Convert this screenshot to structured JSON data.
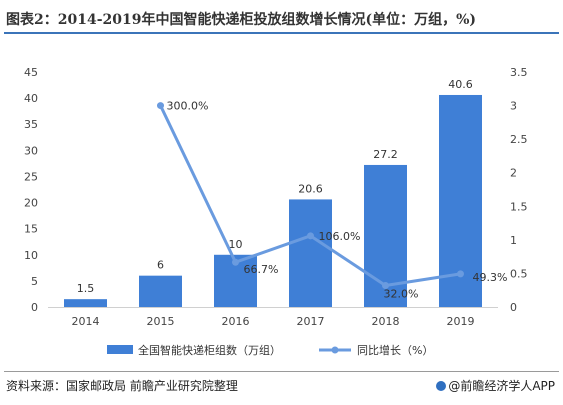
{
  "title": "图表2：2014-2019年中国智能快递柜投放组数增长情况(单位：万组，%)",
  "source": "资料来源：国家邮政局 前瞻产业研究院整理",
  "brand": "@前瞻经济学人APP",
  "colors": {
    "bar": "#3f7fd6",
    "line": "#6a9bdf",
    "title_rule": "#3b74b9"
  },
  "chart_data": {
    "type": "bar",
    "categories": [
      "2014",
      "2015",
      "2016",
      "2017",
      "2018",
      "2019"
    ],
    "series": [
      {
        "name": "全国智能快递柜组数（万组）",
        "type": "bar",
        "axis": "left",
        "values": [
          1.5,
          6,
          10,
          20.6,
          27.2,
          40.6
        ],
        "labels": [
          "1.5",
          "6",
          "10",
          "20.6",
          "27.2",
          "40.6"
        ]
      },
      {
        "name": "同比增长（%）",
        "type": "line",
        "axis": "right",
        "values": [
          null,
          3.0,
          0.667,
          1.06,
          0.32,
          0.493
        ],
        "labels": [
          "",
          "300.0%",
          "66.7%",
          "106.0%",
          "32.0%",
          "49.3%"
        ]
      }
    ],
    "left_axis": {
      "ylim": [
        0,
        45
      ],
      "ticks": [
        "0",
        "5",
        "10",
        "15",
        "20",
        "25",
        "30",
        "35",
        "40",
        "45"
      ]
    },
    "right_axis": {
      "ylim": [
        0,
        3.5
      ],
      "ticks": [
        "0",
        "0.5",
        "1",
        "1.5",
        "2",
        "2.5",
        "3",
        "3.5"
      ]
    },
    "legend": "bottom",
    "grid": false
  }
}
